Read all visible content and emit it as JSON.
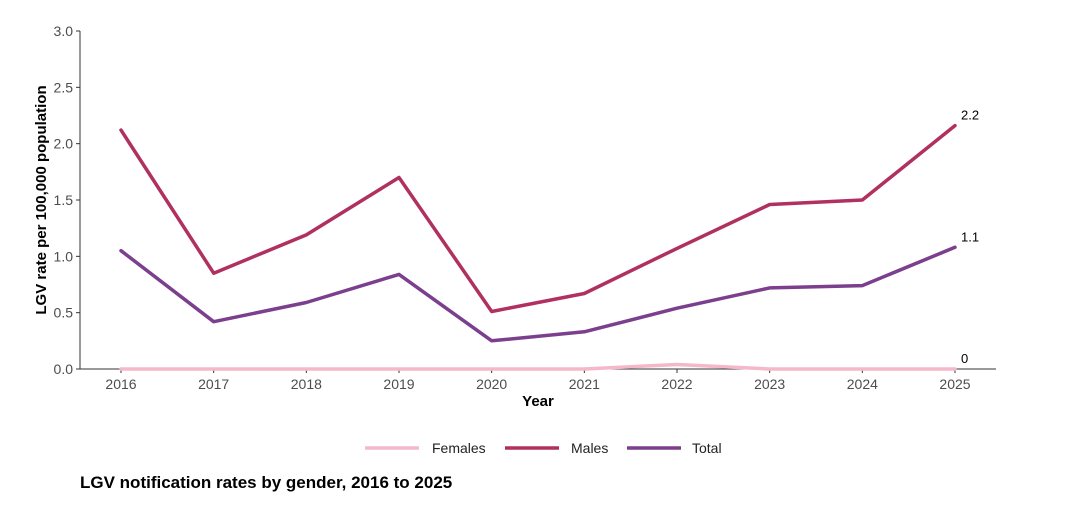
{
  "caption": "LGV notification rates by gender, 2016 to 2025",
  "chart_data": {
    "type": "line",
    "title": "",
    "xlabel": "Year",
    "ylabel": "LGV rate per 100,000 population",
    "x": [
      "2016",
      "2017",
      "2018",
      "2019",
      "2020",
      "2021",
      "2022",
      "2023",
      "2024",
      "2025"
    ],
    "ylim": [
      0,
      3
    ],
    "yticks": [
      "0.0",
      "0.5",
      "1.0",
      "1.5",
      "2.0",
      "2.5",
      "3.0"
    ],
    "grid": false,
    "legend": "bottom",
    "series": [
      {
        "name": "Females",
        "color": "#f4b8c9",
        "values": [
          0,
          0,
          0,
          0,
          0,
          0,
          0.04,
          0,
          0,
          0
        ],
        "end_label": "0"
      },
      {
        "name": "Males",
        "color": "#b03060",
        "values": [
          2.12,
          0.85,
          1.19,
          1.7,
          0.51,
          0.67,
          1.07,
          1.46,
          1.5,
          2.16
        ],
        "end_label": "2.2"
      },
      {
        "name": "Total",
        "color": "#7b3f8e",
        "values": [
          1.05,
          0.42,
          0.59,
          0.84,
          0.25,
          0.33,
          0.54,
          0.72,
          0.74,
          1.08
        ],
        "end_label": "1.1"
      }
    ]
  }
}
